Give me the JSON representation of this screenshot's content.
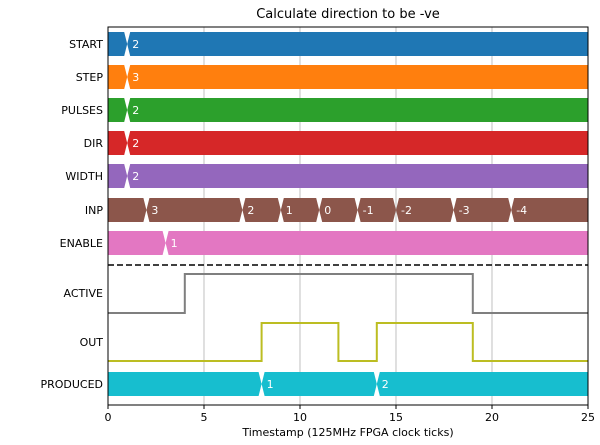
{
  "chart_data": {
    "type": "timing",
    "title": "Calculate direction to be -ve",
    "xlabel": "Timestamp (125MHz FPGA clock ticks)",
    "xlim": [
      0,
      25
    ],
    "xticks": [
      0,
      5,
      10,
      15,
      20,
      25
    ],
    "grid_x": [
      5,
      10,
      15,
      20
    ],
    "buses": [
      {
        "name": "START",
        "color": "#1f77b4",
        "segments": [
          {
            "start": 0,
            "end": 1,
            "label": ""
          },
          {
            "start": 1,
            "end": 25,
            "label": "2"
          }
        ]
      },
      {
        "name": "STEP",
        "color": "#ff7f0e",
        "segments": [
          {
            "start": 0,
            "end": 1,
            "label": ""
          },
          {
            "start": 1,
            "end": 25,
            "label": "3"
          }
        ]
      },
      {
        "name": "PULSES",
        "color": "#2ca02c",
        "segments": [
          {
            "start": 0,
            "end": 1,
            "label": ""
          },
          {
            "start": 1,
            "end": 25,
            "label": "2"
          }
        ]
      },
      {
        "name": "DIR",
        "color": "#d62728",
        "segments": [
          {
            "start": 0,
            "end": 1,
            "label": ""
          },
          {
            "start": 1,
            "end": 25,
            "label": "2"
          }
        ]
      },
      {
        "name": "WIDTH",
        "color": "#9467bd",
        "segments": [
          {
            "start": 0,
            "end": 1,
            "label": ""
          },
          {
            "start": 1,
            "end": 25,
            "label": "2"
          }
        ]
      },
      {
        "name": "INP",
        "color": "#8c564b",
        "segments": [
          {
            "start": 0,
            "end": 2,
            "label": ""
          },
          {
            "start": 2,
            "end": 7,
            "label": "3"
          },
          {
            "start": 7,
            "end": 9,
            "label": "2"
          },
          {
            "start": 9,
            "end": 11,
            "label": "1"
          },
          {
            "start": 11,
            "end": 13,
            "label": "0"
          },
          {
            "start": 13,
            "end": 15,
            "label": "-1"
          },
          {
            "start": 15,
            "end": 18,
            "label": "-2"
          },
          {
            "start": 18,
            "end": 21,
            "label": "-3"
          },
          {
            "start": 21,
            "end": 25,
            "label": "-4"
          }
        ]
      },
      {
        "name": "ENABLE",
        "color": "#e377c2",
        "segments": [
          {
            "start": 0,
            "end": 3,
            "label": ""
          },
          {
            "start": 3,
            "end": 25,
            "label": "1"
          }
        ]
      }
    ],
    "bits": [
      {
        "name": "ACTIVE",
        "color": "#7f7f7f",
        "points": [
          [
            0,
            0
          ],
          [
            4,
            0
          ],
          [
            4,
            1
          ],
          [
            19,
            1
          ],
          [
            19,
            0
          ],
          [
            25,
            0
          ]
        ]
      },
      {
        "name": "OUT",
        "color": "#bcbd22",
        "points": [
          [
            0,
            0
          ],
          [
            8,
            0
          ],
          [
            8,
            1
          ],
          [
            12,
            1
          ],
          [
            12,
            0
          ],
          [
            14,
            0
          ],
          [
            14,
            1
          ],
          [
            19,
            1
          ],
          [
            19,
            0
          ],
          [
            25,
            0
          ]
        ]
      }
    ],
    "bottom_buses": [
      {
        "name": "PRODUCED",
        "color": "#17becf",
        "segments": [
          {
            "start": 0,
            "end": 8,
            "label": ""
          },
          {
            "start": 8,
            "end": 14,
            "label": "1"
          },
          {
            "start": 14,
            "end": 25,
            "label": "2"
          }
        ]
      }
    ]
  }
}
